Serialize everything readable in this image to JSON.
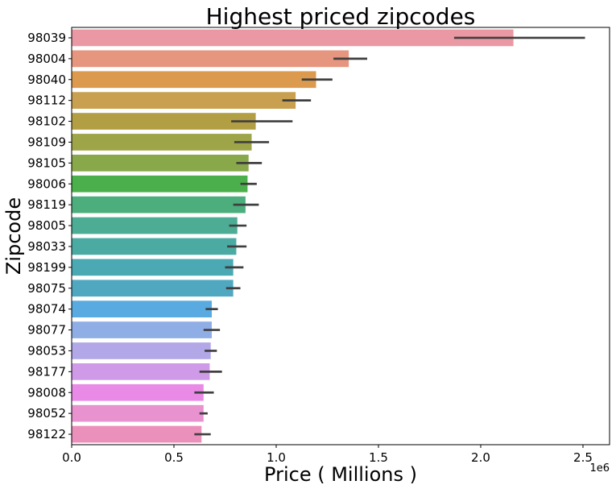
{
  "chart_data": {
    "type": "bar",
    "orientation": "horizontal",
    "title": "Highest priced zipcodes",
    "xlabel": "Price ( Millions )",
    "ylabel": "Zipcode",
    "x_offset_label": "1e6",
    "xlim": [
      0,
      2.63
    ],
    "x_ticks": [
      0.0,
      0.5,
      1.0,
      1.5,
      2.0,
      2.5
    ],
    "x_tick_labels": [
      "0.0",
      "0.5",
      "1.0",
      "1.5",
      "2.0",
      "2.5"
    ],
    "grid": false,
    "legend": "none",
    "categories": [
      "98039",
      "98004",
      "98040",
      "98112",
      "98102",
      "98109",
      "98105",
      "98006",
      "98119",
      "98005",
      "98033",
      "98199",
      "98075",
      "98074",
      "98077",
      "98053",
      "98177",
      "98008",
      "98052",
      "98122"
    ],
    "values": [
      2.16,
      1.355,
      1.195,
      1.095,
      0.9,
      0.88,
      0.865,
      0.86,
      0.85,
      0.81,
      0.805,
      0.79,
      0.79,
      0.685,
      0.685,
      0.68,
      0.675,
      0.645,
      0.645,
      0.635
    ],
    "error_low": [
      1.87,
      1.28,
      1.125,
      1.03,
      0.78,
      0.795,
      0.805,
      0.825,
      0.79,
      0.77,
      0.76,
      0.75,
      0.755,
      0.655,
      0.645,
      0.65,
      0.625,
      0.6,
      0.625,
      0.6
    ],
    "error_high": [
      2.51,
      1.445,
      1.275,
      1.17,
      1.08,
      0.965,
      0.93,
      0.905,
      0.915,
      0.855,
      0.855,
      0.84,
      0.825,
      0.715,
      0.725,
      0.71,
      0.735,
      0.695,
      0.665,
      0.68
    ],
    "colors": [
      "#ea98a3",
      "#e6967f",
      "#dc9a4e",
      "#c8a04f",
      "#b29f43",
      "#9ea448",
      "#88a84a",
      "#4bb04b",
      "#4cae7c",
      "#4cac94",
      "#4baba3",
      "#4aa9b2",
      "#4fa8c0",
      "#58aae0",
      "#90aee6",
      "#b2a8e8",
      "#cf9ae8",
      "#e88ae6",
      "#e892cf",
      "#ea90bb"
    ]
  }
}
